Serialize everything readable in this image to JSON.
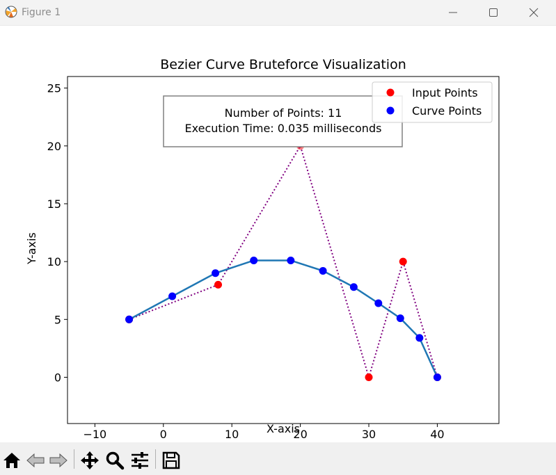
{
  "window": {
    "title": "Figure 1"
  },
  "toolbar": {
    "buttons": [
      "home-icon",
      "back-arrow-icon",
      "forward-arrow-icon",
      "pan-icon",
      "zoom-icon",
      "configure-subplots-icon",
      "save-icon"
    ]
  },
  "chart_data": {
    "type": "line",
    "title": "Bezier Curve Bruteforce Visualization",
    "xlabel": "X-axis",
    "ylabel": "Y-axis",
    "xlim": [
      -14,
      49
    ],
    "ylim": [
      -4,
      26
    ],
    "xticks": [
      -10,
      0,
      10,
      20,
      30,
      40
    ],
    "xtick_labels": [
      "−10",
      "0",
      "10",
      "20",
      "30",
      "40"
    ],
    "yticks": [
      0,
      5,
      10,
      15,
      20,
      25
    ],
    "ytick_labels": [
      "0",
      "5",
      "10",
      "15",
      "20",
      "25"
    ],
    "grid": false,
    "legend": {
      "location": "upper right",
      "entries": [
        {
          "label": "Input Points",
          "color": "#ff0000"
        },
        {
          "label": "Curve Points",
          "color": "#0000ff"
        }
      ]
    },
    "annotation": {
      "line1": "Number of Points: 11",
      "line2": "Execution Time: 0.035 milliseconds"
    },
    "series": [
      {
        "name": "Input Points",
        "kind": "control-polygon",
        "color": "#ff0000",
        "line_color": "#800080",
        "line_style": "dotted",
        "x": [
          -5,
          8,
          20,
          30,
          35,
          40
        ],
        "y": [
          5,
          8,
          20,
          0,
          10,
          0
        ]
      },
      {
        "name": "Curve Points",
        "kind": "curve",
        "color": "#0000ff",
        "line_color": "#1f77b4",
        "x": [
          -5,
          1.3,
          7.6,
          13.2,
          18.6,
          23.3,
          27.8,
          31.4,
          34.6,
          37.4,
          40
        ],
        "y": [
          5,
          7.0,
          9.0,
          10.1,
          10.1,
          9.2,
          7.8,
          6.4,
          5.1,
          3.4,
          0
        ]
      }
    ]
  }
}
